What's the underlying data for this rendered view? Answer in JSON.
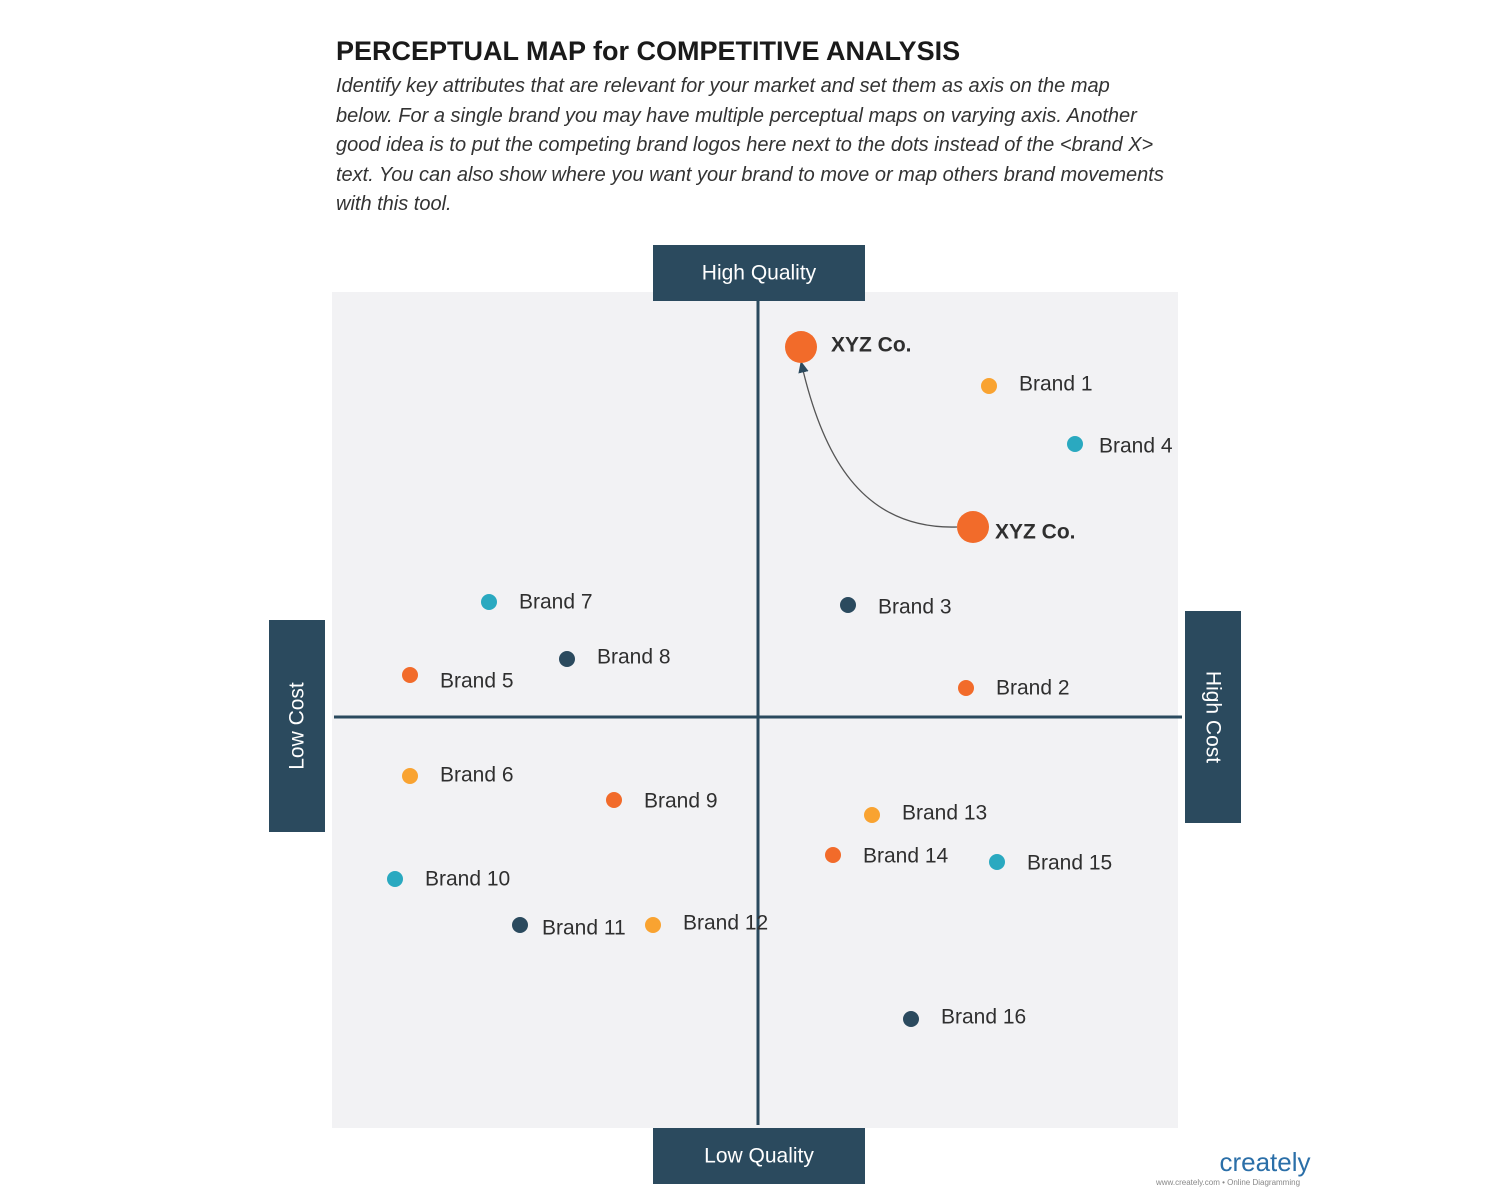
{
  "header": {
    "title": "PERCEPTUAL MAP for COMPETITIVE ANALYSIS",
    "description": "Identify key attributes that are relevant for your market and set them as axis on the map below. For a single brand you may have multiple perceptual maps on varying axis. Another good idea is to put the competing brand logos here next to the dots instead of the <brand X> text. You can also show where you want your brand to move or map others brand movements with this tool."
  },
  "axes": {
    "top": "High Quality",
    "bottom": "Low Quality",
    "left": "Low Cost",
    "right": "High Cost"
  },
  "brands": [
    {
      "label": "XYZ Co.",
      "color": "#f26b2a"
    },
    {
      "label": "Brand 1",
      "color": "#f9a331"
    },
    {
      "label": "Brand 4",
      "color": "#2aa9c0"
    },
    {
      "label": "XYZ Co.",
      "color": "#f26b2a"
    },
    {
      "label": "Brand 7",
      "color": "#2aa9c0"
    },
    {
      "label": "Brand 3",
      "color": "#2b4a5e"
    },
    {
      "label": "Brand 8",
      "color": "#2b4a5e"
    },
    {
      "label": "Brand 5",
      "color": "#f26b2a"
    },
    {
      "label": "Brand 2",
      "color": "#f26b2a"
    },
    {
      "label": "Brand 6",
      "color": "#f9a331"
    },
    {
      "label": "Brand 9",
      "color": "#f26b2a"
    },
    {
      "label": "Brand 13",
      "color": "#f9a331"
    },
    {
      "label": "Brand 14",
      "color": "#f26b2a"
    },
    {
      "label": "Brand 15",
      "color": "#2aa9c0"
    },
    {
      "label": "Brand 10",
      "color": "#2aa9c0"
    },
    {
      "label": "Brand 11",
      "color": "#2b4a5e"
    },
    {
      "label": "Brand 12",
      "color": "#f9a331"
    },
    {
      "label": "Brand 16",
      "color": "#2b4a5e"
    }
  ],
  "logo": {
    "name": "creately",
    "tagline": "www.creately.com • Online Diagramming"
  }
}
